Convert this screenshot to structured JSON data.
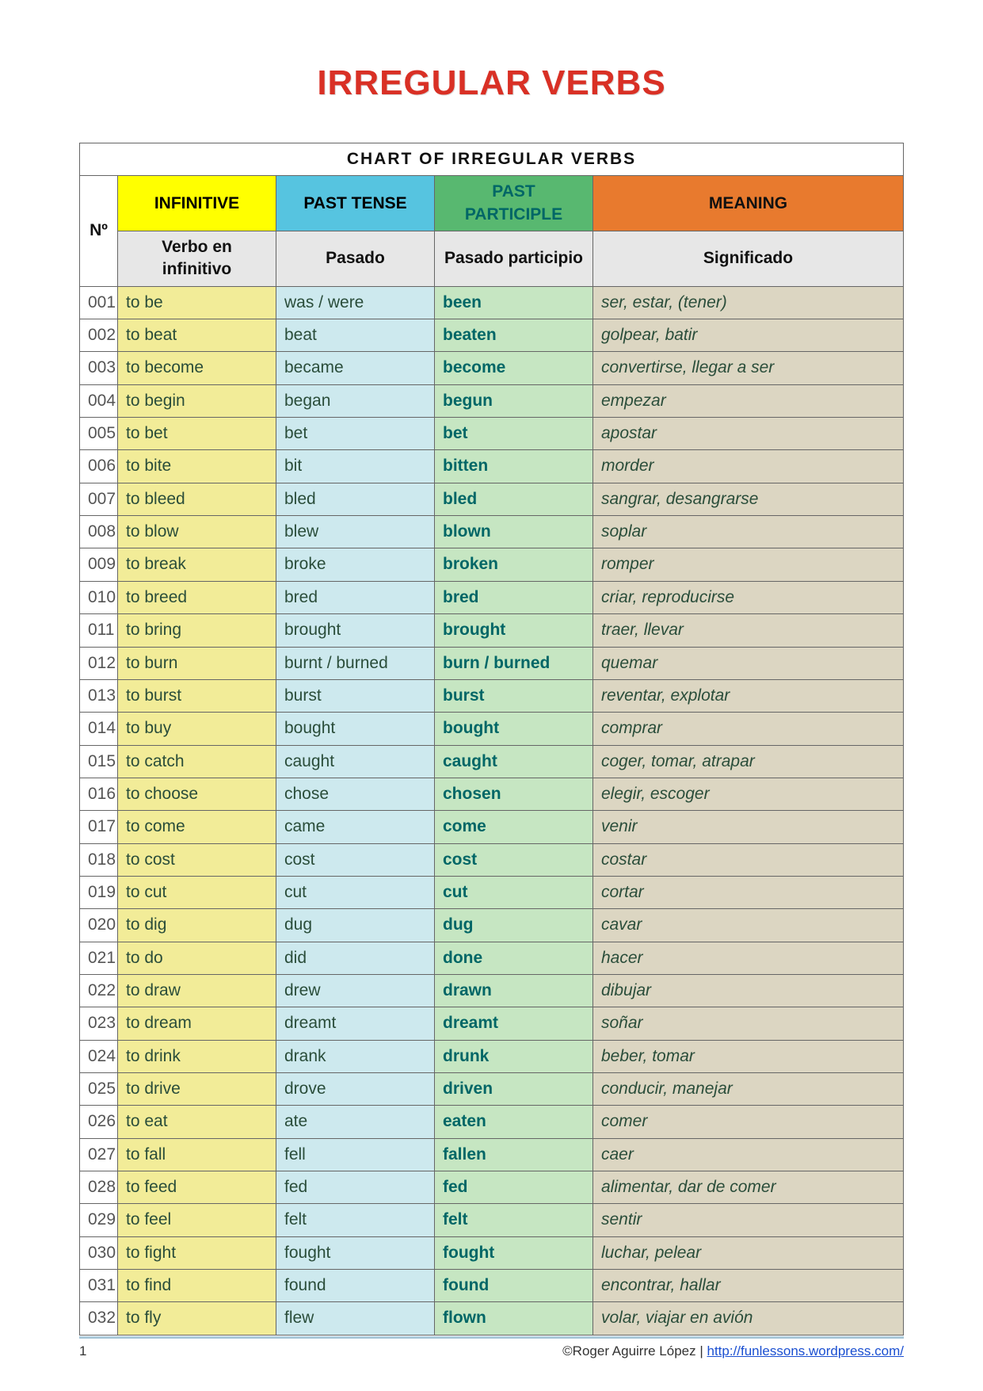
{
  "title": "IRREGULAR VERBS",
  "chart_title": "CHART OF IRREGULAR VERBS",
  "colors": {
    "title_color": "#d93025",
    "head_inf_bg": "#ffff00",
    "head_past_bg": "#56c4e0",
    "head_pp_bg": "#58b870",
    "head_mean_bg": "#e87a2e",
    "sub_bg": "#e7e7e7",
    "cell_inf_bg": "#f2ec98",
    "cell_past_bg": "#cde9ee",
    "cell_pp_bg": "#c6e6c2",
    "cell_mean_bg": "#dcd6c2",
    "pp_text_color": "#006666",
    "body_text_color": "#2a4d3a",
    "border_color": "#666666",
    "footer_rule": "#a9c8d9",
    "link_color": "#1a4fd1"
  },
  "headers": {
    "num": "Nº",
    "inf": "INFINITIVE",
    "past": "PAST TENSE",
    "pp": "PAST PARTICIPLE",
    "mean": "MEANING"
  },
  "subheaders": {
    "inf": "Verbo en infinitivo",
    "past": "Pasado",
    "pp": "Pasado participio",
    "mean": "Significado"
  },
  "rows": [
    {
      "n": "001",
      "inf": "to be",
      "past": "was / were",
      "pp": "been",
      "mean": "ser, estar, (tener)"
    },
    {
      "n": "002",
      "inf": "to beat",
      "past": "beat",
      "pp": "beaten",
      "mean": "golpear, batir"
    },
    {
      "n": "003",
      "inf": "to become",
      "past": "became",
      "pp": "become",
      "mean": "convertirse, llegar a ser"
    },
    {
      "n": "004",
      "inf": "to begin",
      "past": "began",
      "pp": "begun",
      "mean": "empezar"
    },
    {
      "n": "005",
      "inf": "to bet",
      "past": "bet",
      "pp": "bet",
      "mean": "apostar"
    },
    {
      "n": "006",
      "inf": "to bite",
      "past": "bit",
      "pp": "bitten",
      "mean": "morder"
    },
    {
      "n": "007",
      "inf": "to bleed",
      "past": "bled",
      "pp": "bled",
      "mean": "sangrar, desangrarse"
    },
    {
      "n": "008",
      "inf": "to blow",
      "past": "blew",
      "pp": "blown",
      "mean": "soplar"
    },
    {
      "n": "009",
      "inf": "to break",
      "past": "broke",
      "pp": "broken",
      "mean": "romper"
    },
    {
      "n": "010",
      "inf": "to breed",
      "past": "bred",
      "pp": "bred",
      "mean": "criar, reproducirse"
    },
    {
      "n": "011",
      "inf": "to bring",
      "past": "brought",
      "pp": "brought",
      "mean": "traer, llevar"
    },
    {
      "n": "012",
      "inf": "to burn",
      "past": "burnt / burned",
      "pp": "burn / burned",
      "mean": "quemar"
    },
    {
      "n": "013",
      "inf": "to burst",
      "past": "burst",
      "pp": "burst",
      "mean": "reventar, explotar"
    },
    {
      "n": "014",
      "inf": "to buy",
      "past": "bought",
      "pp": "bought",
      "mean": "comprar"
    },
    {
      "n": "015",
      "inf": "to catch",
      "past": "caught",
      "pp": "caught",
      "mean": "coger, tomar, atrapar"
    },
    {
      "n": "016",
      "inf": "to choose",
      "past": "chose",
      "pp": "chosen",
      "mean": "elegir, escoger"
    },
    {
      "n": "017",
      "inf": "to come",
      "past": "came",
      "pp": "come",
      "mean": "venir"
    },
    {
      "n": "018",
      "inf": "to cost",
      "past": "cost",
      "pp": "cost",
      "mean": "costar"
    },
    {
      "n": "019",
      "inf": "to cut",
      "past": "cut",
      "pp": "cut",
      "mean": "cortar"
    },
    {
      "n": "020",
      "inf": "to dig",
      "past": "dug",
      "pp": "dug",
      "mean": "cavar"
    },
    {
      "n": "021",
      "inf": "to do",
      "past": "did",
      "pp": "done",
      "mean": "hacer"
    },
    {
      "n": "022",
      "inf": "to draw",
      "past": "drew",
      "pp": "drawn",
      "mean": "dibujar"
    },
    {
      "n": "023",
      "inf": "to dream",
      "past": "dreamt",
      "pp": "dreamt",
      "mean": "soñar"
    },
    {
      "n": "024",
      "inf": "to drink",
      "past": "drank",
      "pp": "drunk",
      "mean": "beber, tomar"
    },
    {
      "n": "025",
      "inf": "to drive",
      "past": "drove",
      "pp": "driven",
      "mean": "conducir, manejar"
    },
    {
      "n": "026",
      "inf": "to eat",
      "past": "ate",
      "pp": "eaten",
      "mean": "comer"
    },
    {
      "n": "027",
      "inf": "to fall",
      "past": "fell",
      "pp": "fallen",
      "mean": "caer"
    },
    {
      "n": "028",
      "inf": "to feed",
      "past": "fed",
      "pp": "fed",
      "mean": "alimentar, dar de comer"
    },
    {
      "n": "029",
      "inf": "to feel",
      "past": "felt",
      "pp": "felt",
      "mean": "sentir"
    },
    {
      "n": "030",
      "inf": "to fight",
      "past": "fought",
      "pp": "fought",
      "mean": "luchar, pelear"
    },
    {
      "n": "031",
      "inf": "to find",
      "past": "found",
      "pp": "found",
      "mean": "encontrar, hallar"
    },
    {
      "n": "032",
      "inf": "to fly",
      "past": "flew",
      "pp": "flown",
      "mean": "volar, viajar en avión"
    }
  ],
  "footer": {
    "page_number": "1",
    "credit_prefix": "©Roger Aguirre López | ",
    "link_text": "http://funlessons.wordpress.com/",
    "link_href": "http://funlessons.wordpress.com/"
  }
}
